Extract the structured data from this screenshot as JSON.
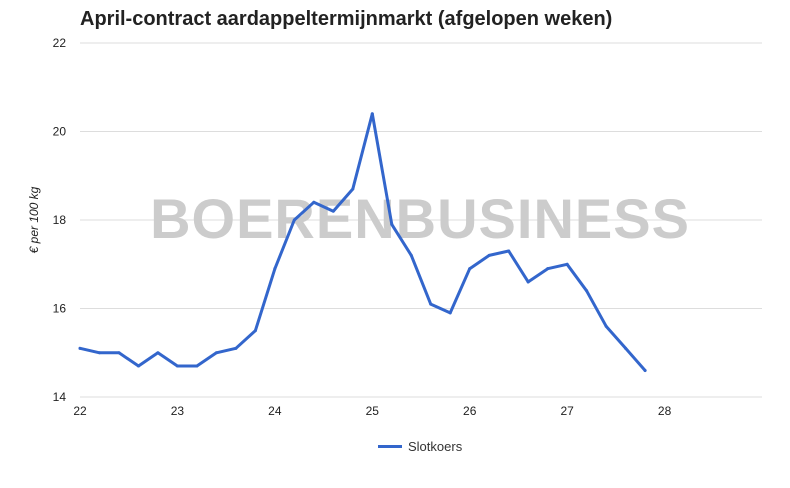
{
  "chart_data": {
    "type": "line",
    "title": "April-contract aardappeltermijnmarkt (afgelopen weken)",
    "ylabel": "€ per 100 kg",
    "xlabel": "",
    "watermark": "BOERENBUSINESS",
    "xlim": [
      22,
      29
    ],
    "ylim": [
      14,
      22
    ],
    "x_ticks": [
      "22",
      "23",
      "24",
      "25",
      "26",
      "27",
      "28"
    ],
    "y_ticks": [
      "22",
      "20",
      "18",
      "16",
      "14"
    ],
    "grid": true,
    "legend_position": "bottom",
    "colors": {
      "line": "#3366cc",
      "grid": "#dddddd",
      "watermark": "#cccccc"
    },
    "series": [
      {
        "name": "Slotkoers",
        "x": [
          22,
          22.2,
          22.4,
          22.6,
          22.8,
          23,
          23.2,
          23.4,
          23.6,
          23.8,
          24,
          24.2,
          24.4,
          24.6,
          24.8,
          25,
          25.2,
          25.4,
          25.6,
          25.8,
          26,
          26.2,
          26.4,
          26.6,
          26.8,
          27,
          27.2,
          27.4,
          27.6,
          27.8
        ],
        "values": [
          15.1,
          15.0,
          15.0,
          14.7,
          15.0,
          14.7,
          14.7,
          15.0,
          15.1,
          15.5,
          16.9,
          18.0,
          18.4,
          18.2,
          18.7,
          20.4,
          17.9,
          17.2,
          16.1,
          15.9,
          16.9,
          17.2,
          17.3,
          16.6,
          16.9,
          17.0,
          16.4,
          15.6,
          15.1,
          14.6
        ]
      }
    ]
  }
}
